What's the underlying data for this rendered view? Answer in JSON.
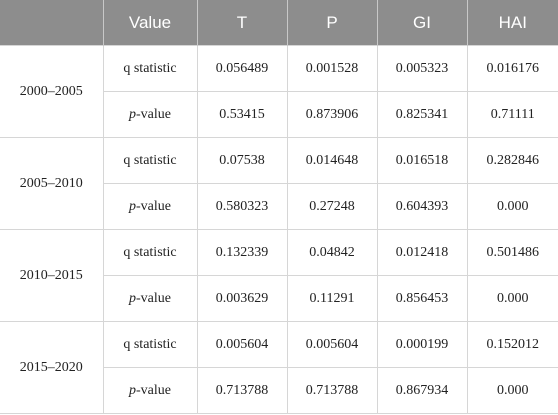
{
  "table": {
    "columns": [
      "Value",
      "T",
      "P",
      "GI",
      "HAI"
    ],
    "groups": [
      {
        "period": "2000–2005",
        "rows": [
          {
            "label": "q statistic",
            "values": [
              "0.056489",
              "0.001528",
              "0.005323",
              "0.016176"
            ]
          },
          {
            "label": "p-value",
            "values": [
              "0.53415",
              "0.873906",
              "0.825341",
              "0.71111"
            ]
          }
        ]
      },
      {
        "period": "2005–2010",
        "rows": [
          {
            "label": "q statistic",
            "values": [
              "0.07538",
              "0.014648",
              "0.016518",
              "0.282846"
            ]
          },
          {
            "label": "p-value",
            "values": [
              "0.580323",
              "0.27248",
              "0.604393",
              "0.000"
            ]
          }
        ]
      },
      {
        "period": "2010–2015",
        "rows": [
          {
            "label": "q statistic",
            "values": [
              "0.132339",
              "0.04842",
              "0.012418",
              "0.501486"
            ]
          },
          {
            "label": "p-value",
            "values": [
              "0.003629",
              "0.11291",
              "0.856453",
              "0.000"
            ]
          }
        ]
      },
      {
        "period": "2015–2020",
        "rows": [
          {
            "label": "q statistic",
            "values": [
              "0.005604",
              "0.005604",
              "0.000199",
              "0.152012"
            ]
          },
          {
            "label": "p-value",
            "values": [
              "0.713788",
              "0.713788",
              "0.867934",
              "0.000"
            ]
          }
        ]
      }
    ]
  }
}
